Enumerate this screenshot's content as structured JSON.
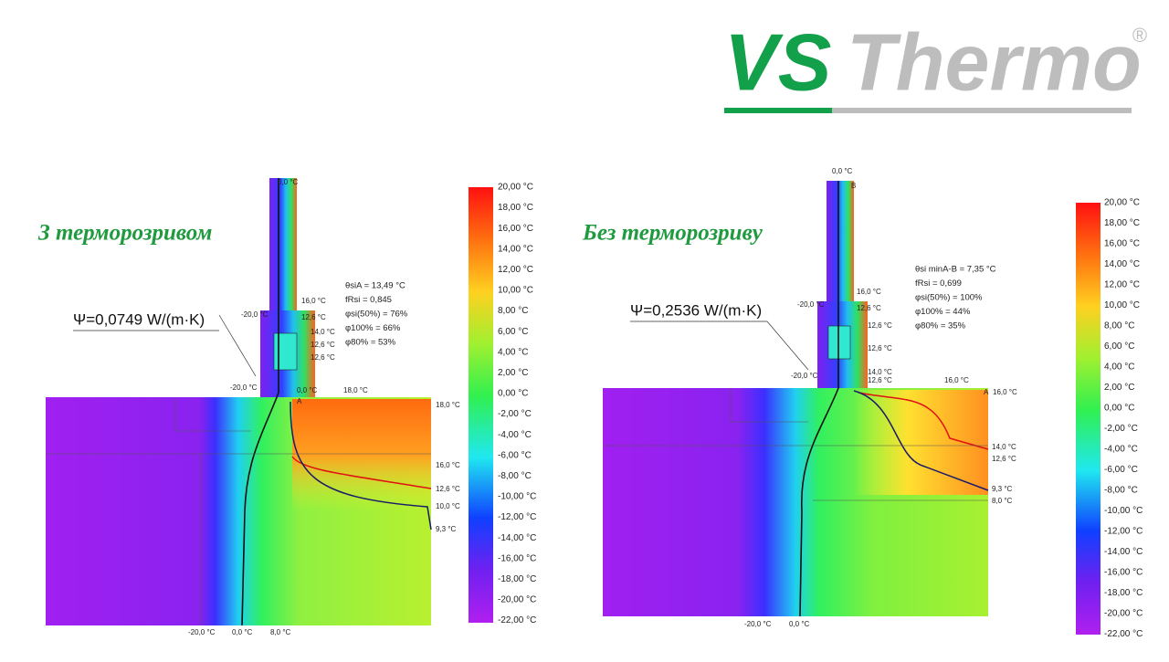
{
  "logo": {
    "part1": "VS",
    "part2": "Thermo",
    "mark": "®"
  },
  "panels": [
    {
      "title": "З терморозривом",
      "psi": "Ψ=0,0749 W/(m·K)",
      "annotations": [
        "θsiA = 13,49 °C",
        "fRsi = 0,845",
        "φsi(50%) = 76%",
        "φ100% = 66%",
        "φ80% = 53%"
      ],
      "temp_labels": [
        "0,0 °C",
        "-20,0 °C",
        "16,0 °C",
        "12,6 °C",
        "14,0 °C",
        "12,6 °C",
        "12,6 °C",
        "-20,0 °C",
        "0,0 °C",
        "18,0 °C",
        "A",
        "18,0 °C",
        "16,0 °C",
        "12,6 °C",
        "10,0 °C",
        "9,3 °C",
        "-20,0 °C",
        "0,0 °C",
        "8,0 °C"
      ],
      "colorbar": [
        "20,00 °C",
        "18,00 °C",
        "16,00 °C",
        "14,00 °C",
        "12,00 °C",
        "10,00 °C",
        "8,00 °C",
        "6,00 °C",
        "4,00 °C",
        "2,00 °C",
        "0,00 °C",
        "-2,00 °C",
        "-4,00 °C",
        "-6,00 °C",
        "-8,00 °C",
        "-10,00 °C",
        "-12,00 °C",
        "-14,00 °C",
        "-16,00 °C",
        "-18,00 °C",
        "-20,00 °C",
        "-22,00 °C"
      ]
    },
    {
      "title": "Без терморозриву",
      "psi": "Ψ=0,2536 W/(m·K)",
      "annotations": [
        "θsi minA-B = 7,35 °C",
        "fRsi = 0,699",
        "φsi(50%) = 100%",
        "φ100% = 44%",
        "φ80% = 35%"
      ],
      "temp_labels": [
        "0,0 °C",
        "B",
        "-20,0 °C",
        "16,0 °C",
        "12,6 °C",
        "12,6 °C",
        "12,6 °C",
        "-20,0 °C",
        "14,0 °C",
        "12,6 °C",
        "16,0 °C",
        "A",
        "16,0 °C",
        "14,0 °C",
        "12,6 °C",
        "9,3 °C",
        "8,0 °C",
        "-20,0 °C",
        "0,0 °C"
      ],
      "colorbar": [
        "20,00 °C",
        "18,00 °C",
        "16,00 °C",
        "14,00 °C",
        "12,00 °C",
        "10,00 °C",
        "8,00 °C",
        "6,00 °C",
        "4,00 °C",
        "2,00 °C",
        "0,00 °C",
        "-2,00 °C",
        "-4,00 °C",
        "-6,00 °C",
        "-8,00 °C",
        "-10,00 °C",
        "-12,00 °C",
        "-14,00 °C",
        "-16,00 °C",
        "-18,00 °C",
        "-20,00 °C",
        "-22,00 °C"
      ]
    }
  ]
}
